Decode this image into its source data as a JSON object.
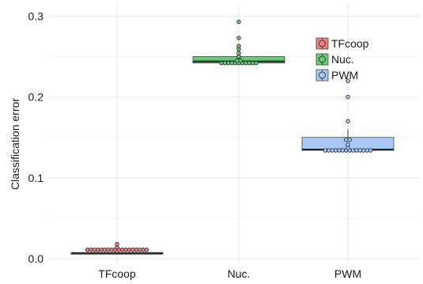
{
  "chart_data": {
    "type": "box",
    "title": "",
    "xlabel": "",
    "ylabel": "Classification error",
    "ylim": [
      0,
      0.3
    ],
    "yticks": [
      {
        "value": 0.0,
        "label": "0.0"
      },
      {
        "value": 0.1,
        "label": "0.1"
      },
      {
        "value": 0.2,
        "label": "0.2"
      },
      {
        "value": 0.3,
        "label": "0.3"
      }
    ],
    "grid": true,
    "legend": {
      "placement": "top-right"
    },
    "categories": [
      "TFcoop",
      "Nuc.",
      "PWM"
    ],
    "series": [
      {
        "name": "TFcoop",
        "color": "#f08080",
        "q1": 0.006,
        "median": 0.007,
        "q3": 0.007,
        "whisker_low": 0.006,
        "whisker_high": 0.007,
        "points": [
          0.011,
          0.011,
          0.011,
          0.011,
          0.011,
          0.011,
          0.011,
          0.011,
          0.011,
          0.011,
          0.011,
          0.011,
          0.011,
          0.011,
          0.011,
          0.011,
          0.011,
          0.011,
          0.014,
          0.018
        ]
      },
      {
        "name": "Nuc.",
        "color": "#66cc77",
        "q1": 0.242,
        "median": 0.244,
        "q3": 0.25,
        "whisker_low": 0.241,
        "whisker_high": 0.25,
        "points": [
          0.242,
          0.242,
          0.242,
          0.242,
          0.242,
          0.242,
          0.242,
          0.242,
          0.242,
          0.242,
          0.242,
          0.245,
          0.245,
          0.25,
          0.254,
          0.259,
          0.263,
          0.273,
          0.293
        ]
      },
      {
        "name": "PWM",
        "color": "#a8c8f8",
        "q1": 0.134,
        "median": 0.135,
        "q3": 0.15,
        "whisker_low": 0.133,
        "whisker_high": 0.16,
        "points": [
          0.134,
          0.134,
          0.134,
          0.134,
          0.134,
          0.134,
          0.134,
          0.134,
          0.134,
          0.134,
          0.134,
          0.134,
          0.134,
          0.134,
          0.137,
          0.141,
          0.147,
          0.147,
          0.17,
          0.2,
          0.22
        ]
      }
    ]
  }
}
